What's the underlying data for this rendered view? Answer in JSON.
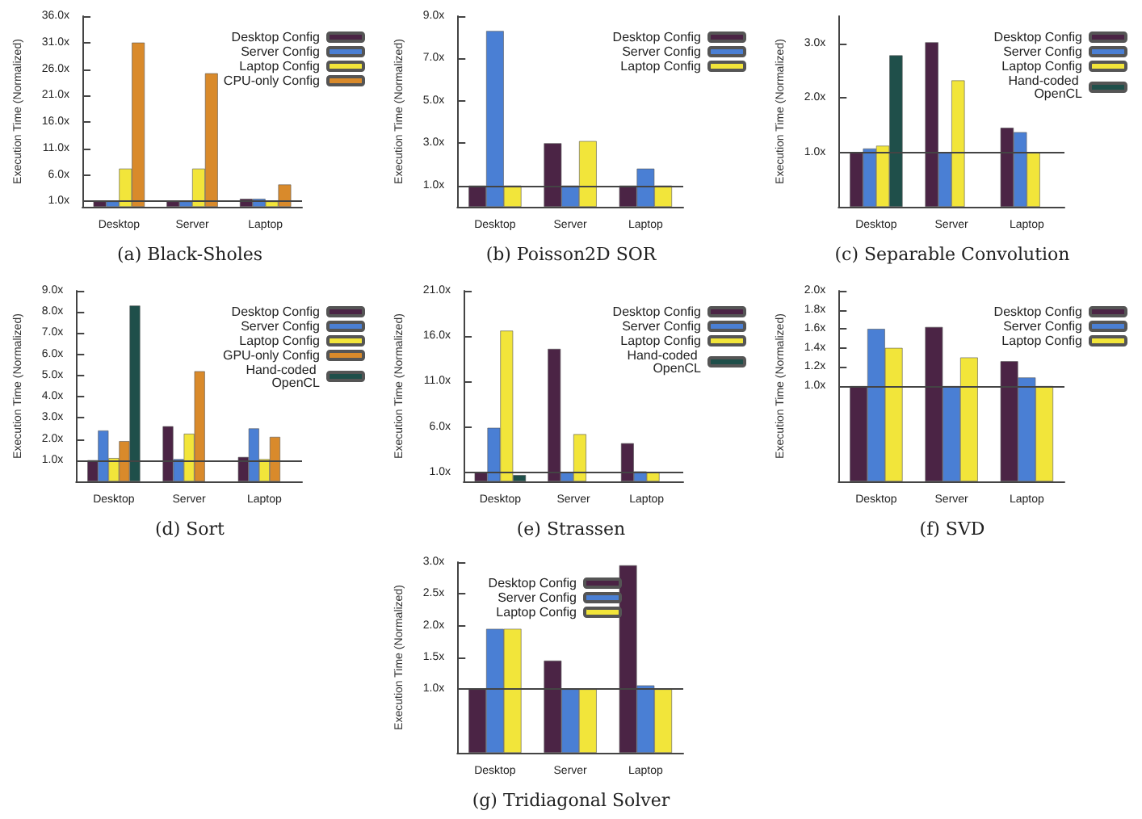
{
  "chart_data": [
    {
      "type": "bar",
      "title": "(a) Black-Sholes",
      "ylabel": "Execution Time (Normalized)",
      "categories": [
        "Desktop",
        "Server",
        "Laptop"
      ],
      "ylim": [
        0,
        36
      ],
      "yticks": [
        {
          "value": 1,
          "label": "1.0x"
        },
        {
          "value": 6,
          "label": "6.0x"
        },
        {
          "value": 11,
          "label": "11.0x"
        },
        {
          "value": 16,
          "label": "16.0x"
        },
        {
          "value": 21,
          "label": "21.0x"
        },
        {
          "value": 26,
          "label": "26.0x"
        },
        {
          "value": 31,
          "label": "31.0x"
        },
        {
          "value": 36,
          "label": "36.0x"
        }
      ],
      "legend": "top right",
      "ref_lines": [
        {
          "axis": "y",
          "value": 1
        }
      ],
      "series": [
        {
          "name": "Desktop Config",
          "color": "#4b2445",
          "values": [
            1.0,
            1.0,
            1.5
          ]
        },
        {
          "name": "Server Config",
          "color": "#4a7fd4",
          "values": [
            1.0,
            1.0,
            1.5
          ]
        },
        {
          "name": "Laptop Config",
          "color": "#f2e53a",
          "values": [
            7.2,
            7.2,
            1.0
          ]
        },
        {
          "name": "CPU-only Config",
          "color": "#d98a2b",
          "values": [
            31,
            25.2,
            4.2
          ]
        }
      ]
    },
    {
      "type": "bar",
      "title": "(b) Poisson2D SOR",
      "ylabel": "Execution Time (Normalized)",
      "categories": [
        "Desktop",
        "Server",
        "Laptop"
      ],
      "ylim": [
        0,
        9
      ],
      "yticks": [
        {
          "value": 1,
          "label": "1.0x"
        },
        {
          "value": 3,
          "label": "3.0x"
        },
        {
          "value": 5,
          "label": "5.0x"
        },
        {
          "value": 7,
          "label": "7.0x"
        },
        {
          "value": 9,
          "label": "9.0x"
        }
      ],
      "legend": "top right",
      "ref_lines": [
        {
          "axis": "y",
          "value": 1
        }
      ],
      "series": [
        {
          "name": "Desktop Config",
          "color": "#4b2445",
          "values": [
            1.0,
            3.0,
            1.0
          ]
        },
        {
          "name": "Server Config",
          "color": "#4a7fd4",
          "values": [
            8.3,
            1.0,
            1.8
          ]
        },
        {
          "name": "Laptop Config",
          "color": "#f2e53a",
          "values": [
            1.0,
            3.1,
            1.0
          ]
        }
      ]
    },
    {
      "type": "bar",
      "title": "(c) Separable Convolution",
      "ylabel": "Execution Time (Normalized)",
      "categories": [
        "Desktop",
        "Server",
        "Laptop"
      ],
      "ylim": [
        0,
        3.5
      ],
      "yticks": [
        {
          "value": 1,
          "label": "1.0x"
        },
        {
          "value": 2,
          "label": "2.0x"
        },
        {
          "value": 3,
          "label": "3.0x"
        }
      ],
      "legend": "top right",
      "ref_lines": [
        {
          "axis": "y",
          "value": 1
        }
      ],
      "series": [
        {
          "name": "Desktop Config",
          "color": "#4b2445",
          "values": [
            1.0,
            3.02,
            1.45
          ]
        },
        {
          "name": "Server Config",
          "color": "#4a7fd4",
          "values": [
            1.07,
            1.0,
            1.37
          ]
        },
        {
          "name": "Laptop Config",
          "color": "#f2e53a",
          "values": [
            1.12,
            2.32,
            1.0
          ]
        },
        {
          "name": "Hand-coded OpenCL",
          "color": "#1f4f4a",
          "values": [
            2.78,
            null,
            null
          ]
        }
      ]
    },
    {
      "type": "bar",
      "title": "(d) Sort",
      "ylabel": "Execution Time (Normalized)",
      "categories": [
        "Desktop",
        "Server",
        "Laptop"
      ],
      "ylim": [
        0,
        9
      ],
      "yticks": [
        {
          "value": 1,
          "label": "1.0x"
        },
        {
          "value": 2,
          "label": "2.0x"
        },
        {
          "value": 3,
          "label": "3.0x"
        },
        {
          "value": 4,
          "label": "4.0x"
        },
        {
          "value": 5,
          "label": "5.0x"
        },
        {
          "value": 6,
          "label": "6.0x"
        },
        {
          "value": 7,
          "label": "7.0x"
        },
        {
          "value": 8,
          "label": "8.0x"
        },
        {
          "value": 9,
          "label": "9.0x"
        }
      ],
      "legend": "top right",
      "ref_lines": [
        {
          "axis": "y",
          "value": 1
        }
      ],
      "series": [
        {
          "name": "Desktop Config",
          "color": "#4b2445",
          "values": [
            1.0,
            2.6,
            1.15
          ]
        },
        {
          "name": "Server Config",
          "color": "#4a7fd4",
          "values": [
            2.4,
            1.05,
            2.5
          ]
        },
        {
          "name": "Laptop Config",
          "color": "#f2e53a",
          "values": [
            1.1,
            2.25,
            1.05
          ]
        },
        {
          "name": "GPU-only Config",
          "color": "#d98a2b",
          "values": [
            1.9,
            5.2,
            2.1
          ]
        },
        {
          "name": "Hand-coded OpenCL",
          "color": "#1f4f4a",
          "values": [
            8.3,
            null,
            null
          ]
        }
      ]
    },
    {
      "type": "bar",
      "title": "(e) Strassen",
      "ylabel": "Execution Time (Normalized)",
      "categories": [
        "Desktop",
        "Server",
        "Laptop"
      ],
      "ylim": [
        0,
        21
      ],
      "yticks": [
        {
          "value": 1,
          "label": "1.0x"
        },
        {
          "value": 6,
          "label": "6.0x"
        },
        {
          "value": 11,
          "label": "11.0x"
        },
        {
          "value": 16,
          "label": "16.0x"
        },
        {
          "value": 21,
          "label": "21.0x"
        }
      ],
      "legend": "top right",
      "ref_lines": [
        {
          "axis": "y",
          "value": 1
        }
      ],
      "series": [
        {
          "name": "Desktop Config",
          "color": "#4b2445",
          "values": [
            1.0,
            14.6,
            4.2
          ]
        },
        {
          "name": "Server Config",
          "color": "#4a7fd4",
          "values": [
            5.9,
            1.0,
            1.1
          ]
        },
        {
          "name": "Laptop Config",
          "color": "#f2e53a",
          "values": [
            16.6,
            5.2,
            1.0
          ]
        },
        {
          "name": "Hand-coded OpenCL",
          "color": "#1f4f4a",
          "values": [
            0.7,
            null,
            null
          ]
        }
      ]
    },
    {
      "type": "bar",
      "title": "(f) SVD",
      "ylabel": "Execution Time (Normalized)",
      "categories": [
        "Desktop",
        "Server",
        "Laptop"
      ],
      "ylim": [
        0,
        2
      ],
      "yticks": [
        {
          "value": 1,
          "label": "1.0x"
        },
        {
          "value": 1.2,
          "label": "1.2x"
        },
        {
          "value": 1.4,
          "label": "1.4x"
        },
        {
          "value": 1.6,
          "label": "1.6x"
        },
        {
          "value": 1.8,
          "label": "1.8x"
        },
        {
          "value": 2,
          "label": "2.0x"
        }
      ],
      "legend": "top right",
      "ref_lines": [
        {
          "axis": "y",
          "value": 1
        }
      ],
      "series": [
        {
          "name": "Desktop Config",
          "color": "#4b2445",
          "values": [
            1.0,
            1.62,
            1.26
          ]
        },
        {
          "name": "Server Config",
          "color": "#4a7fd4",
          "values": [
            1.6,
            1.0,
            1.09
          ]
        },
        {
          "name": "Laptop Config",
          "color": "#f2e53a",
          "values": [
            1.4,
            1.3,
            1.0
          ]
        }
      ]
    },
    {
      "type": "bar",
      "title": "(g) Tridiagonal Solver",
      "ylabel": "Execution Time (Normalized)",
      "categories": [
        "Desktop",
        "Server",
        "Laptop"
      ],
      "ylim": [
        0,
        3
      ],
      "yticks": [
        {
          "value": 1,
          "label": "1.0x"
        },
        {
          "value": 1.5,
          "label": "1.5x"
        },
        {
          "value": 2,
          "label": "2.0x"
        },
        {
          "value": 2.5,
          "label": "2.5x"
        },
        {
          "value": 3,
          "label": "3.0x"
        }
      ],
      "legend": "top left",
      "ref_lines": [
        {
          "axis": "y",
          "value": 1
        }
      ],
      "series": [
        {
          "name": "Desktop Config",
          "color": "#4b2445",
          "values": [
            1.0,
            1.45,
            2.95
          ]
        },
        {
          "name": "Server Config",
          "color": "#4a7fd4",
          "values": [
            1.95,
            1.0,
            1.06
          ]
        },
        {
          "name": "Laptop Config",
          "color": "#f2e53a",
          "values": [
            1.95,
            1.0,
            1.0
          ]
        }
      ]
    }
  ]
}
